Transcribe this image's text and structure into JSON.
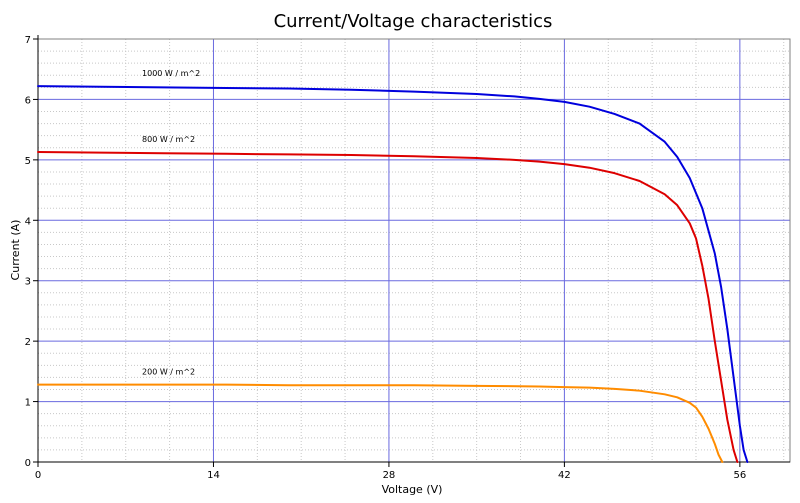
{
  "chart_data": {
    "type": "line",
    "title": "Current/Voltage characteristics",
    "xlabel": "Voltage (V)",
    "ylabel": "Current (A)",
    "xlim": [
      0,
      60
    ],
    "ylim": [
      0,
      7
    ],
    "x_ticks": [
      0,
      14,
      28,
      42,
      56
    ],
    "y_ticks": [
      0,
      1,
      2,
      3,
      4,
      5,
      6,
      7
    ],
    "x_minor_step": 3.5,
    "y_minor_step": 0.2,
    "grid": true,
    "series": [
      {
        "name": "1000 W / m^2",
        "color": "#0000dd",
        "x": [
          0,
          5,
          10,
          15,
          20,
          25,
          30,
          35,
          38,
          40,
          42,
          44,
          46,
          48,
          50,
          51,
          52,
          53,
          54,
          54.5,
          55,
          55.5,
          56,
          56.3,
          56.6
        ],
        "y": [
          6.22,
          6.21,
          6.2,
          6.19,
          6.18,
          6.16,
          6.13,
          6.09,
          6.05,
          6.01,
          5.96,
          5.88,
          5.76,
          5.6,
          5.3,
          5.05,
          4.7,
          4.2,
          3.45,
          2.9,
          2.2,
          1.4,
          0.6,
          0.2,
          0
        ]
      },
      {
        "name": "800 W / m^2",
        "color": "#dd0000",
        "x": [
          0,
          5,
          10,
          15,
          20,
          25,
          30,
          35,
          38,
          40,
          42,
          44,
          46,
          48,
          50,
          51,
          52,
          52.5,
          53,
          53.5,
          54,
          54.5,
          55,
          55.5,
          55.8
        ],
        "y": [
          5.13,
          5.12,
          5.11,
          5.1,
          5.09,
          5.08,
          5.06,
          5.03,
          5.0,
          4.97,
          4.93,
          4.87,
          4.78,
          4.65,
          4.43,
          4.25,
          3.95,
          3.7,
          3.25,
          2.7,
          2.0,
          1.35,
          0.7,
          0.2,
          0
        ]
      },
      {
        "name": "200 W / m^2",
        "color": "#ff8c00",
        "x": [
          0,
          5,
          10,
          15,
          20,
          25,
          30,
          35,
          40,
          42,
          44,
          46,
          48,
          50,
          51,
          52,
          52.5,
          53,
          53.5,
          54,
          54.3,
          54.6
        ],
        "y": [
          1.28,
          1.28,
          1.28,
          1.28,
          1.27,
          1.27,
          1.27,
          1.26,
          1.25,
          1.24,
          1.23,
          1.21,
          1.18,
          1.12,
          1.07,
          0.98,
          0.9,
          0.75,
          0.55,
          0.3,
          0.12,
          0
        ]
      }
    ]
  }
}
